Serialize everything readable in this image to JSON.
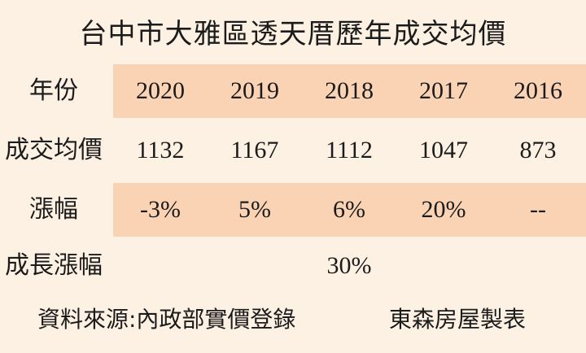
{
  "title": "台中市大雅區透天厝歷年成交均價",
  "table": {
    "header": {
      "label": "年份",
      "cells": [
        "2020",
        "2019",
        "2018",
        "2017",
        "2016"
      ]
    },
    "avg_price": {
      "label": "成交均價",
      "cells": [
        "1132",
        "1167",
        "1112",
        "1047",
        "873"
      ]
    },
    "change": {
      "label": "漲幅",
      "cells": [
        "-3%",
        "5%",
        "6%",
        "20%",
        "--"
      ]
    },
    "growth": {
      "label": "成長漲幅",
      "value": "30%"
    }
  },
  "footer": {
    "source": "資料來源:內政部實價登錄",
    "maker": "東森房屋製表"
  },
  "colors": {
    "background": "#fdf1e3",
    "band": "#fad3b5",
    "text": "#1b1b1b"
  }
}
